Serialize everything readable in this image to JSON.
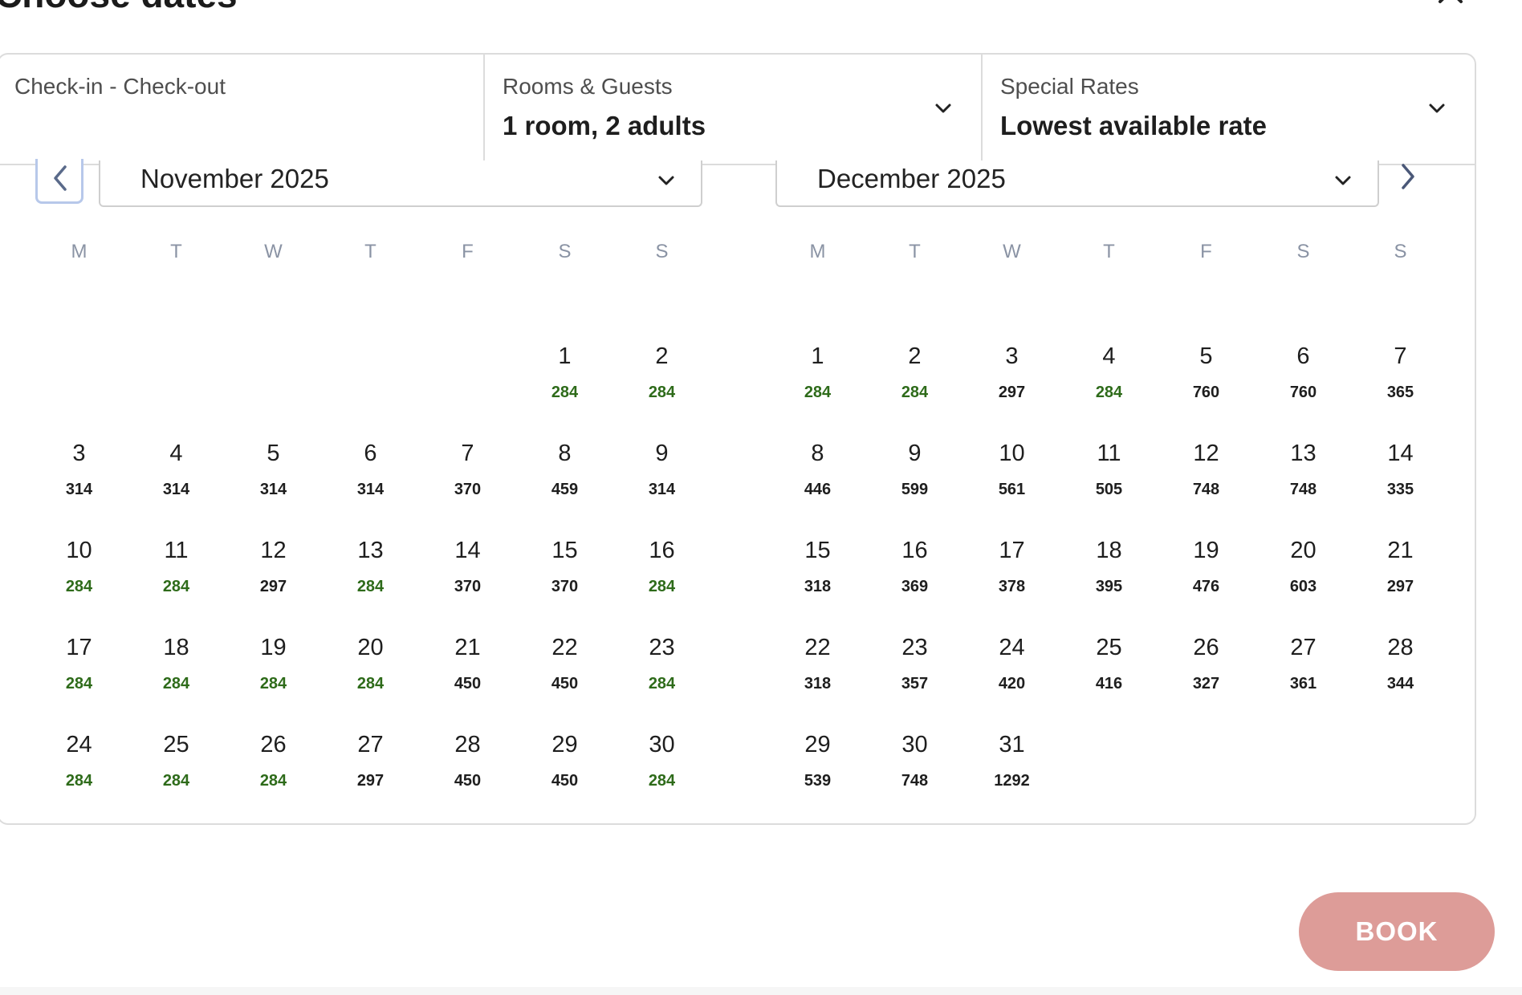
{
  "dialog": {
    "title": "Choose dates"
  },
  "fields": {
    "dates": {
      "label": "Check-in - Check-out"
    },
    "guests": {
      "label": "Rooms & Guests",
      "value": "1 room, 2 adults"
    },
    "rates": {
      "label": "Special Rates",
      "value": "Lowest available rate"
    }
  },
  "weekdays": [
    "M",
    "T",
    "W",
    "T",
    "F",
    "S",
    "S"
  ],
  "months": [
    {
      "label": "November 2025",
      "start_weekday": 5,
      "days": [
        {
          "d": "1",
          "p": "284",
          "low": true
        },
        {
          "d": "2",
          "p": "284",
          "low": true
        },
        {
          "d": "3",
          "p": "314",
          "low": false
        },
        {
          "d": "4",
          "p": "314",
          "low": false
        },
        {
          "d": "5",
          "p": "314",
          "low": false
        },
        {
          "d": "6",
          "p": "314",
          "low": false
        },
        {
          "d": "7",
          "p": "370",
          "low": false
        },
        {
          "d": "8",
          "p": "459",
          "low": false
        },
        {
          "d": "9",
          "p": "314",
          "low": false
        },
        {
          "d": "10",
          "p": "284",
          "low": true
        },
        {
          "d": "11",
          "p": "284",
          "low": true
        },
        {
          "d": "12",
          "p": "297",
          "low": false
        },
        {
          "d": "13",
          "p": "284",
          "low": true
        },
        {
          "d": "14",
          "p": "370",
          "low": false
        },
        {
          "d": "15",
          "p": "370",
          "low": false
        },
        {
          "d": "16",
          "p": "284",
          "low": true
        },
        {
          "d": "17",
          "p": "284",
          "low": true
        },
        {
          "d": "18",
          "p": "284",
          "low": true
        },
        {
          "d": "19",
          "p": "284",
          "low": true
        },
        {
          "d": "20",
          "p": "284",
          "low": true
        },
        {
          "d": "21",
          "p": "450",
          "low": false
        },
        {
          "d": "22",
          "p": "450",
          "low": false
        },
        {
          "d": "23",
          "p": "284",
          "low": true
        },
        {
          "d": "24",
          "p": "284",
          "low": true
        },
        {
          "d": "25",
          "p": "284",
          "low": true
        },
        {
          "d": "26",
          "p": "284",
          "low": true
        },
        {
          "d": "27",
          "p": "297",
          "low": false
        },
        {
          "d": "28",
          "p": "450",
          "low": false
        },
        {
          "d": "29",
          "p": "450",
          "low": false
        },
        {
          "d": "30",
          "p": "284",
          "low": true
        }
      ]
    },
    {
      "label": "December 2025",
      "start_weekday": 0,
      "days": [
        {
          "d": "1",
          "p": "284",
          "low": true
        },
        {
          "d": "2",
          "p": "284",
          "low": true
        },
        {
          "d": "3",
          "p": "297",
          "low": false
        },
        {
          "d": "4",
          "p": "284",
          "low": true
        },
        {
          "d": "5",
          "p": "760",
          "low": false
        },
        {
          "d": "6",
          "p": "760",
          "low": false
        },
        {
          "d": "7",
          "p": "365",
          "low": false
        },
        {
          "d": "8",
          "p": "446",
          "low": false
        },
        {
          "d": "9",
          "p": "599",
          "low": false
        },
        {
          "d": "10",
          "p": "561",
          "low": false
        },
        {
          "d": "11",
          "p": "505",
          "low": false
        },
        {
          "d": "12",
          "p": "748",
          "low": false
        },
        {
          "d": "13",
          "p": "748",
          "low": false
        },
        {
          "d": "14",
          "p": "335",
          "low": false
        },
        {
          "d": "15",
          "p": "318",
          "low": false
        },
        {
          "d": "16",
          "p": "369",
          "low": false
        },
        {
          "d": "17",
          "p": "378",
          "low": false
        },
        {
          "d": "18",
          "p": "395",
          "low": false
        },
        {
          "d": "19",
          "p": "476",
          "low": false
        },
        {
          "d": "20",
          "p": "603",
          "low": false
        },
        {
          "d": "21",
          "p": "297",
          "low": false
        },
        {
          "d": "22",
          "p": "318",
          "low": false
        },
        {
          "d": "23",
          "p": "357",
          "low": false
        },
        {
          "d": "24",
          "p": "420",
          "low": false
        },
        {
          "d": "25",
          "p": "416",
          "low": false
        },
        {
          "d": "26",
          "p": "327",
          "low": false
        },
        {
          "d": "27",
          "p": "361",
          "low": false
        },
        {
          "d": "28",
          "p": "344",
          "low": false
        },
        {
          "d": "29",
          "p": "539",
          "low": false
        },
        {
          "d": "30",
          "p": "748",
          "low": false
        },
        {
          "d": "31",
          "p": "1292",
          "low": false
        }
      ]
    }
  ],
  "book_label": "BOOK",
  "colors": {
    "low_price": "#2e6b1a",
    "book_button": "#dd9c98",
    "nav_focus": "#b7c8ea"
  },
  "icons": {
    "close": "close-icon",
    "prev": "chevron-left-icon",
    "next": "chevron-right-icon",
    "dropdown": "chevron-down-icon"
  }
}
